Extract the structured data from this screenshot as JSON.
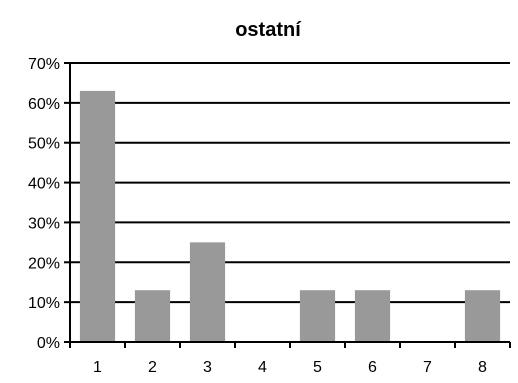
{
  "chart_data": {
    "type": "bar",
    "title": "ostatní",
    "categories": [
      "1",
      "2",
      "3",
      "4",
      "5",
      "6",
      "7",
      "8"
    ],
    "values": [
      63,
      13,
      25,
      0,
      13,
      13,
      0,
      13
    ],
    "ylim": [
      0,
      70
    ],
    "yticks": [
      0,
      10,
      20,
      30,
      40,
      50,
      60,
      70
    ],
    "ytick_labels": [
      "0%",
      "10%",
      "20%",
      "30%",
      "40%",
      "50%",
      "60%",
      "70%"
    ],
    "grid": true,
    "legend": "none",
    "colors": {
      "bar": "#999999",
      "grid": "#000000",
      "axis": "#000000"
    }
  }
}
